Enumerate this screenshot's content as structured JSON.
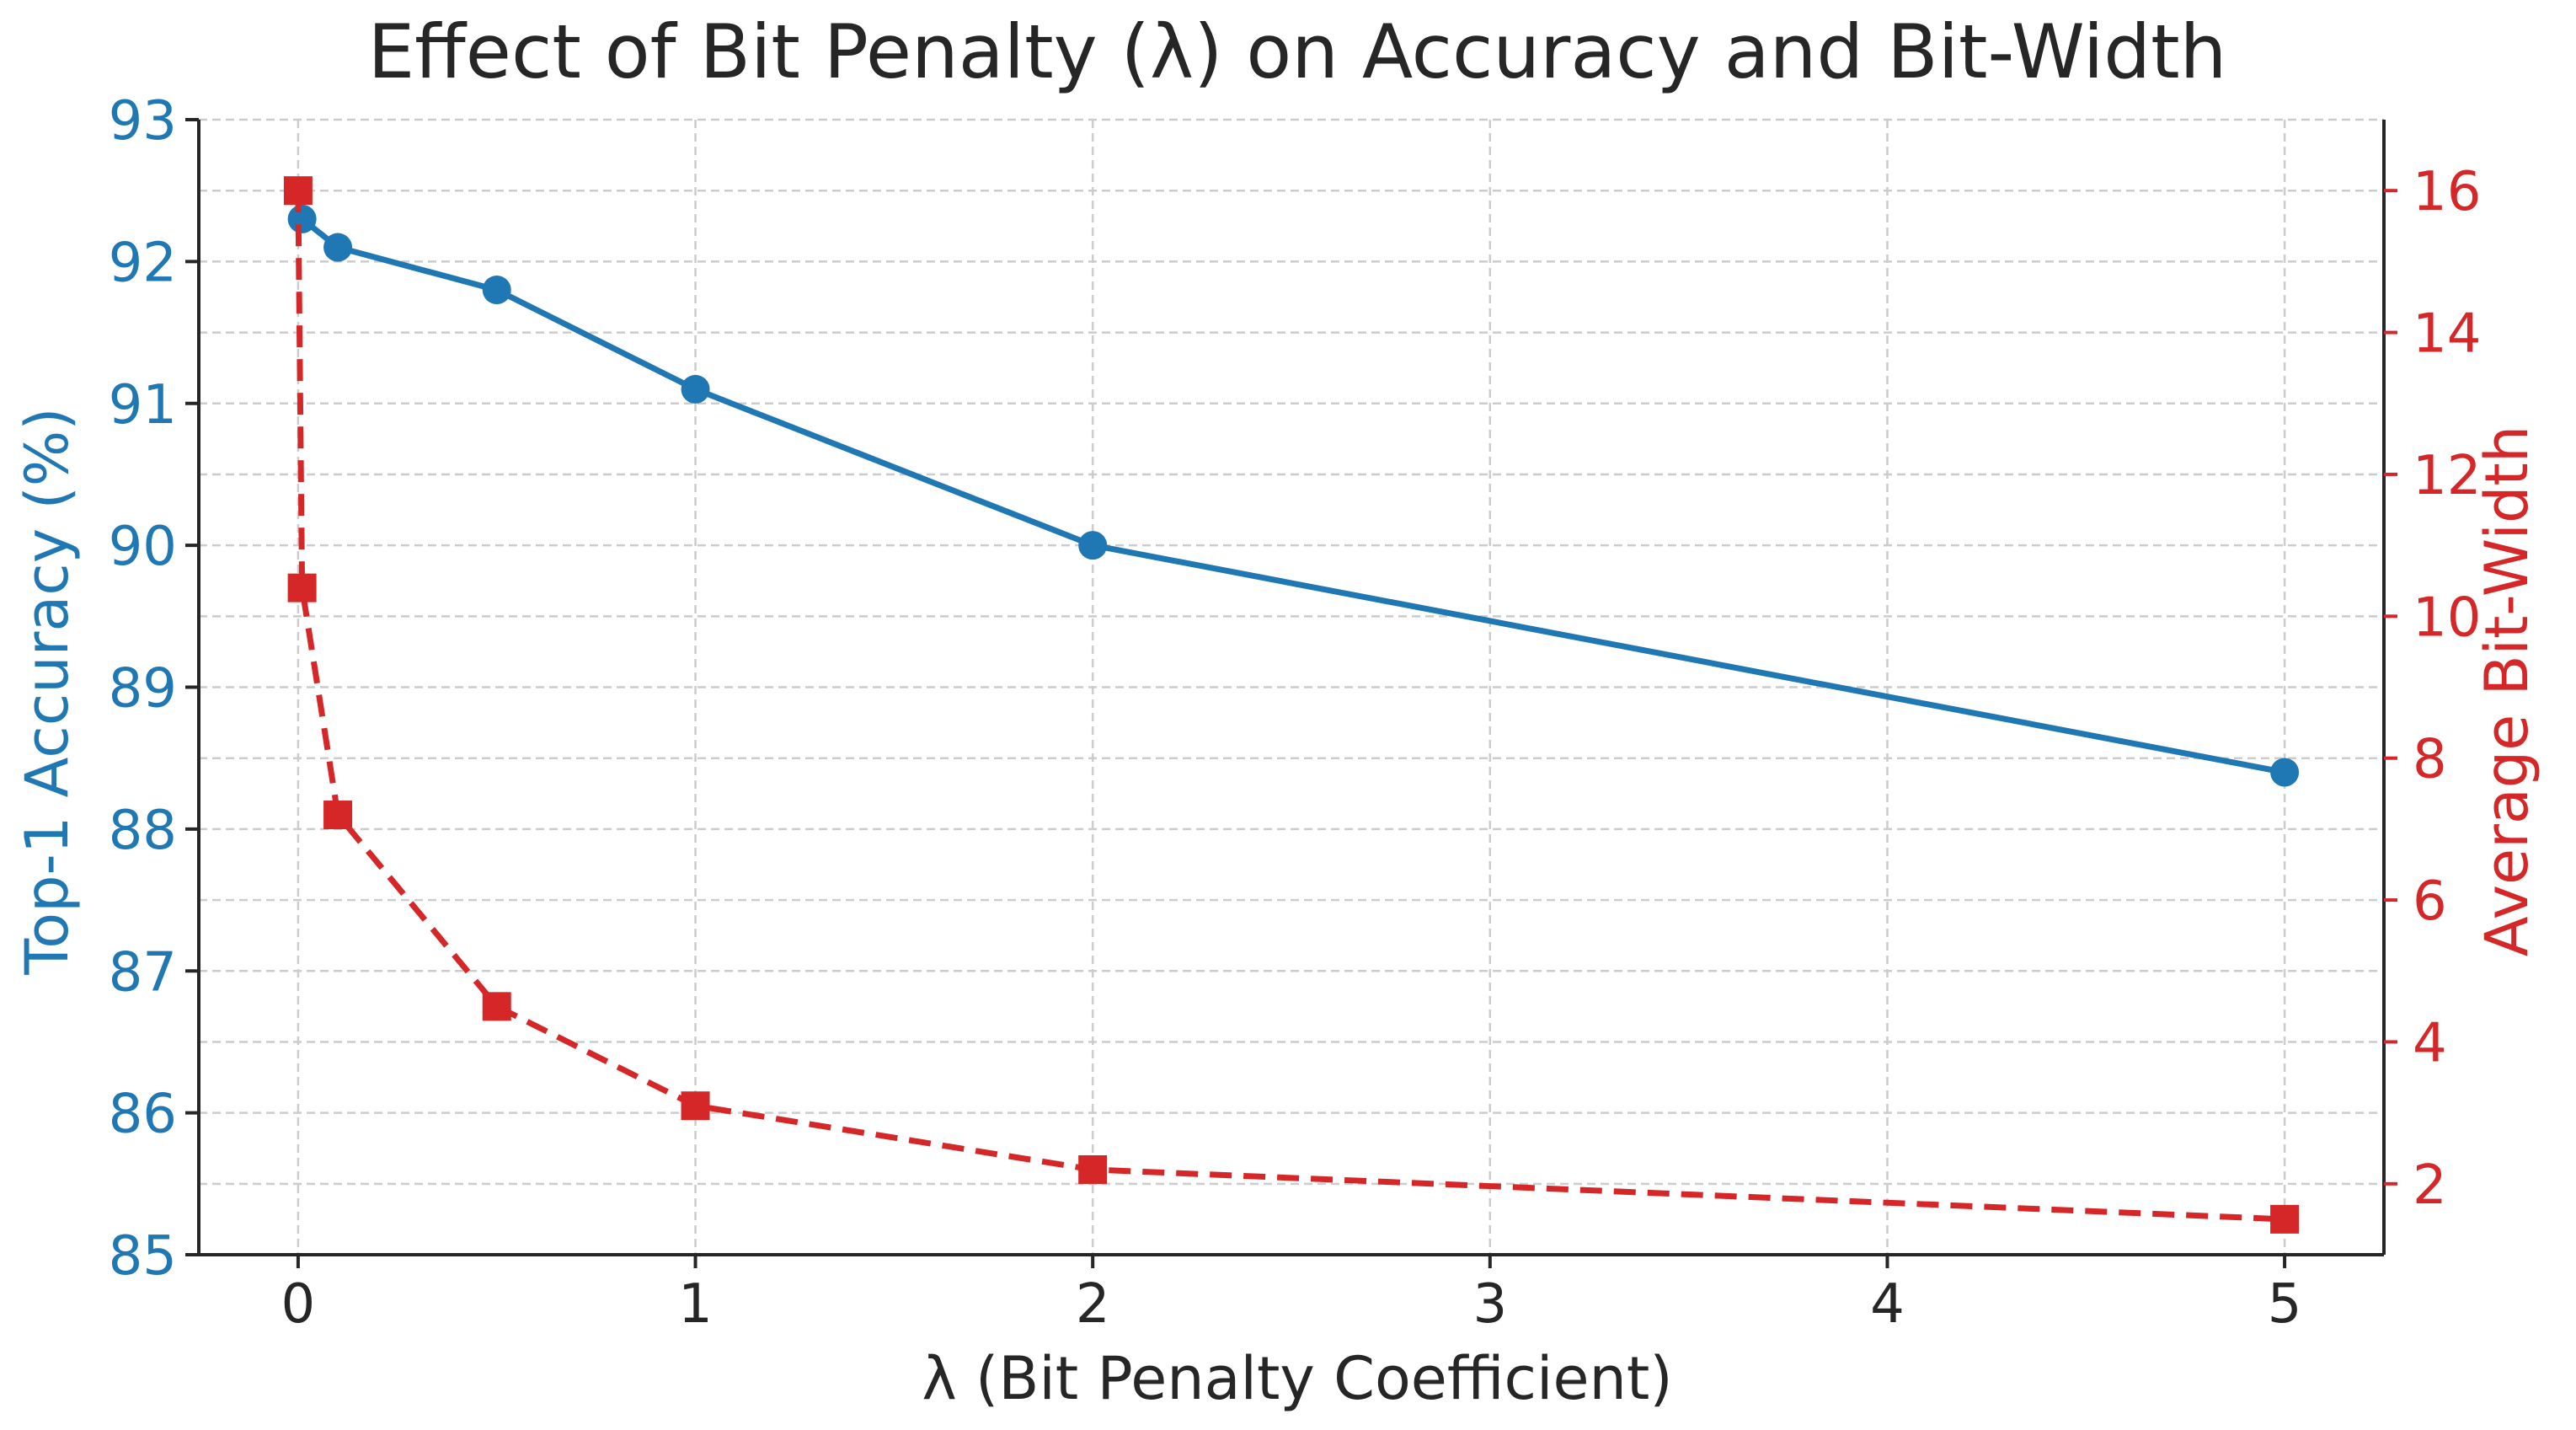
{
  "chart_data": {
    "type": "line",
    "title": "Effect of Bit Penalty (λ) on Accuracy and Bit-Width",
    "xlabel": "λ (Bit Penalty Coefficient)",
    "ylabel_left": "Top-1 Accuracy (%)",
    "ylabel_right": "Average Bit-Width",
    "xlim": [
      -0.25,
      5.25
    ],
    "xticks": [
      0,
      1,
      2,
      3,
      4,
      5
    ],
    "ylim_left": [
      85,
      93
    ],
    "yticks_left": [
      85,
      86,
      87,
      88,
      89,
      90,
      91,
      92,
      93
    ],
    "ylim_right": [
      1,
      17
    ],
    "yticks_right": [
      2,
      4,
      6,
      8,
      10,
      12,
      14,
      16
    ],
    "grid": true,
    "colors": {
      "accuracy": "#1f77b4",
      "bits": "#d62728",
      "axis": "#262626",
      "grid": "#cccccc"
    },
    "x": [
      0,
      0.01,
      0.1,
      0.5,
      1,
      2,
      5
    ],
    "series": [
      {
        "axis": "left",
        "style": "solid",
        "marker": "circle",
        "x": [
          0.01,
          0.1,
          0.5,
          1,
          2,
          5
        ],
        "values": [
          92.3,
          92.1,
          91.8,
          91.1,
          90.0,
          88.4
        ]
      },
      {
        "axis": "right",
        "style": "dashed",
        "marker": "square",
        "x": [
          0,
          0.01,
          0.1,
          0.5,
          1,
          2,
          5
        ],
        "values": [
          16.0,
          10.4,
          7.2,
          4.5,
          3.1,
          2.2,
          1.5
        ]
      }
    ]
  }
}
